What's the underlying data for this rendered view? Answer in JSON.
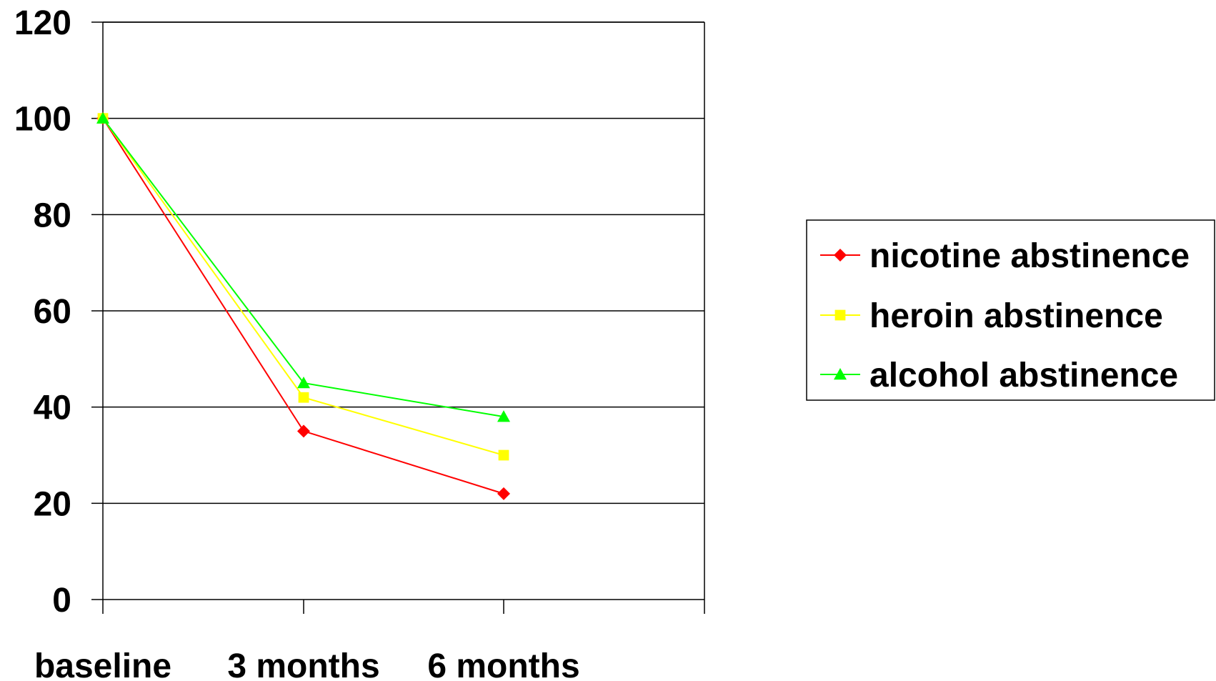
{
  "chart_data": {
    "type": "line",
    "categories": [
      "baseline",
      "3 months",
      "6 months"
    ],
    "ylim": [
      0,
      120
    ],
    "y_ticks": [
      "0",
      "20",
      "40",
      "60",
      "80",
      "100",
      "120"
    ],
    "grid": "horizontal",
    "legend_position": "right",
    "title": "",
    "xlabel": "",
    "ylabel": "",
    "series": [
      {
        "name": "nicotine abstinence",
        "values": [
          100,
          35,
          22
        ],
        "color": "#ff0000",
        "marker": "diamond"
      },
      {
        "name": "heroin abstinence",
        "values": [
          100,
          42,
          30
        ],
        "color": "#ffff00",
        "marker": "square"
      },
      {
        "name": "alcohol abstinence",
        "values": [
          100,
          45,
          38
        ],
        "color": "#00ff00",
        "marker": "triangle"
      }
    ]
  }
}
